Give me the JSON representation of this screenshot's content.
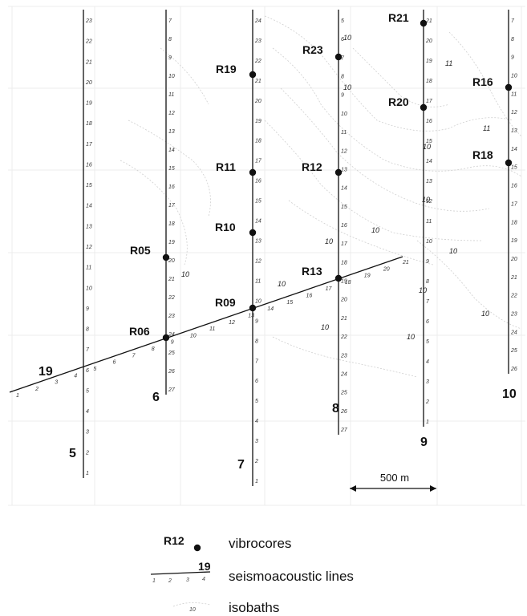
{
  "vertical_lines": [
    {
      "id": "5",
      "label": "5",
      "shots_top_to_bottom": [
        "23",
        "22",
        "21",
        "20",
        "19",
        "18",
        "17",
        "16",
        "15",
        "14",
        "13",
        "12",
        "11",
        "10",
        "9",
        "8",
        "7",
        "6",
        "5",
        "4",
        "3",
        "2",
        "1"
      ]
    },
    {
      "id": "6",
      "label": "6",
      "shots_top_to_bottom": [
        "7",
        "8",
        "9",
        "10",
        "11",
        "12",
        "13",
        "14",
        "15",
        "16",
        "17",
        "18",
        "19",
        "20",
        "21",
        "22",
        "23",
        "24",
        "25",
        "26",
        "27"
      ]
    },
    {
      "id": "7",
      "label": "7",
      "shots_top_to_bottom": [
        "24",
        "23",
        "22",
        "21",
        "20",
        "19",
        "18",
        "17",
        "16",
        "15",
        "14",
        "13",
        "12",
        "11",
        "10",
        "9",
        "8",
        "7",
        "6",
        "5",
        "4",
        "3",
        "2",
        "1"
      ]
    },
    {
      "id": "8",
      "label": "8",
      "shots_top_to_bottom": [
        "5",
        "6",
        "7",
        "8",
        "9",
        "10",
        "11",
        "12",
        "13",
        "14",
        "15",
        "16",
        "17",
        "18",
        "19",
        "20",
        "21",
        "22",
        "23",
        "24",
        "25",
        "26",
        "27"
      ]
    },
    {
      "id": "9",
      "label": "9",
      "shots_top_to_bottom": [
        "21",
        "20",
        "19",
        "18",
        "17",
        "16",
        "15",
        "14",
        "13",
        "12",
        "11",
        "10",
        "9",
        "8",
        "7",
        "6",
        "5",
        "4",
        "3",
        "2",
        "1"
      ]
    },
    {
      "id": "10",
      "label": "10",
      "shots_top_to_bottom": [
        "7",
        "8",
        "9",
        "10",
        "11",
        "12",
        "13",
        "14",
        "15",
        "16",
        "17",
        "18",
        "19",
        "20",
        "21",
        "22",
        "23",
        "24",
        "25",
        "26"
      ]
    }
  ],
  "oblique_line": {
    "id": "19",
    "label": "19",
    "shots": [
      "1",
      "2",
      "3",
      "4",
      "5",
      "6",
      "7",
      "8",
      "9",
      "10",
      "11",
      "12",
      "13",
      "14",
      "15",
      "16",
      "17",
      "18",
      "19",
      "20",
      "21"
    ]
  },
  "vibrocores": [
    "R21",
    "R23",
    "R19",
    "R16",
    "R20",
    "R18",
    "R11",
    "R12",
    "R10",
    "R05",
    "R13",
    "R09",
    "R06"
  ],
  "isobath_labels": [
    "10",
    "10",
    "11",
    "11",
    "10",
    "10",
    "10",
    "10",
    "10",
    "10",
    "10",
    "10",
    "10",
    "10",
    "10"
  ],
  "scale_bar": {
    "label": "500 m"
  },
  "legend": {
    "vibrocore_sample": "R12",
    "vibrocore_text": "vibrocores",
    "line_sample": "19",
    "line_sample_shots": [
      "1",
      "2",
      "3",
      "4"
    ],
    "line_text": "seismoacoustic lines",
    "isobath_sample": "10",
    "isobath_text": "isobaths"
  }
}
